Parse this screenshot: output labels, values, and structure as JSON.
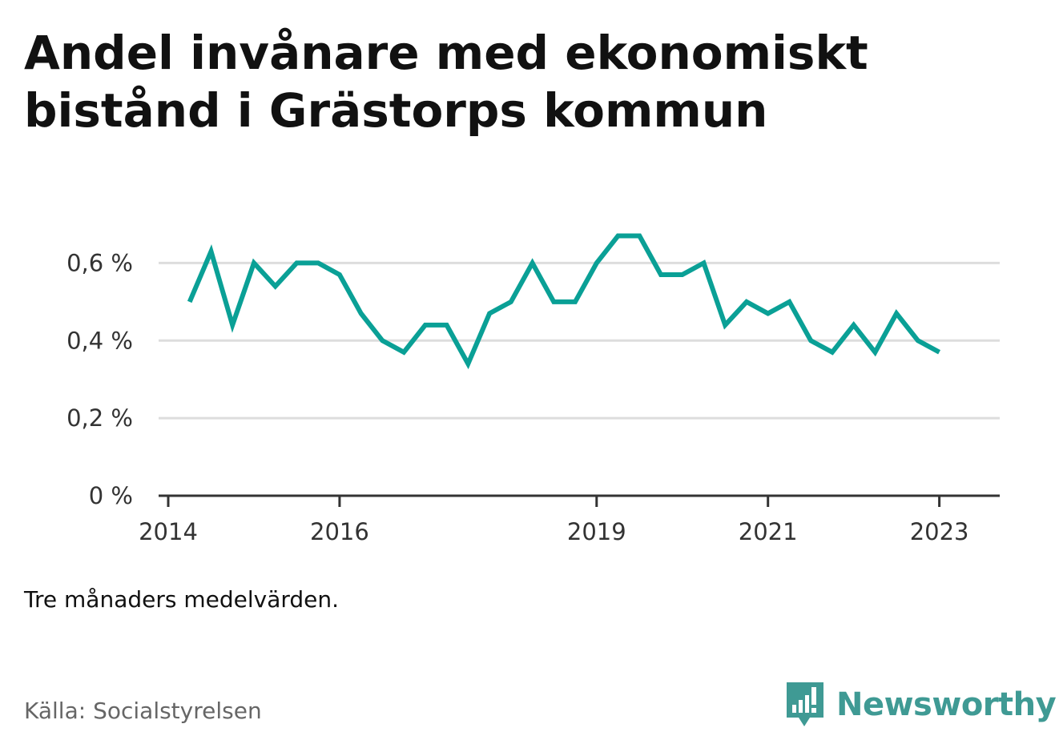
{
  "title": "Andel invånare med ekonomiskt bistånd i Grästorps kommun",
  "note": "Tre månaders medelvärden.",
  "source": "Källa: Socialstyrelsen",
  "brand": {
    "name": "Newsworthy",
    "icon": "newsworthy-logo-icon",
    "color": "#3f9a94"
  },
  "colors": {
    "line": "#0aa096",
    "grid": "#dddddd",
    "axis": "#333333"
  },
  "chart_data": {
    "type": "line",
    "title": "Andel invånare med ekonomiskt bistånd i Grästorps kommun",
    "xlabel": "",
    "ylabel": "",
    "x_ticks": [
      "2014",
      "2016",
      "2019",
      "2021",
      "2023"
    ],
    "y_ticks": [
      "0 %",
      "0,2 %",
      "0,4 %",
      "0,6 %"
    ],
    "ylim": [
      0,
      0.7
    ],
    "xlim": [
      "2014-01",
      "2023-08"
    ],
    "grid": "horizontal",
    "series": [
      {
        "name": "",
        "x": [
          "2014-04",
          "2014-07",
          "2014-10",
          "2015-01",
          "2015-04",
          "2015-07",
          "2015-10",
          "2016-01",
          "2016-04",
          "2016-07",
          "2016-10",
          "2017-01",
          "2017-04",
          "2017-07",
          "2017-10",
          "2018-01",
          "2018-04",
          "2018-07",
          "2018-10",
          "2019-01",
          "2019-04",
          "2019-07",
          "2019-10",
          "2020-01",
          "2020-04",
          "2020-07",
          "2020-10",
          "2021-01",
          "2021-04",
          "2021-07",
          "2021-10",
          "2022-01",
          "2022-04",
          "2022-07",
          "2022-10",
          "2023-01"
        ],
        "values": [
          0.5,
          0.63,
          0.44,
          0.6,
          0.54,
          0.6,
          0.6,
          0.57,
          0.47,
          0.4,
          0.37,
          0.44,
          0.44,
          0.34,
          0.47,
          0.5,
          0.6,
          0.5,
          0.5,
          0.6,
          0.67,
          0.67,
          0.57,
          0.57,
          0.6,
          0.44,
          0.5,
          0.47,
          0.5,
          0.4,
          0.37,
          0.44,
          0.37,
          0.47,
          0.4,
          0.37
        ]
      }
    ]
  }
}
